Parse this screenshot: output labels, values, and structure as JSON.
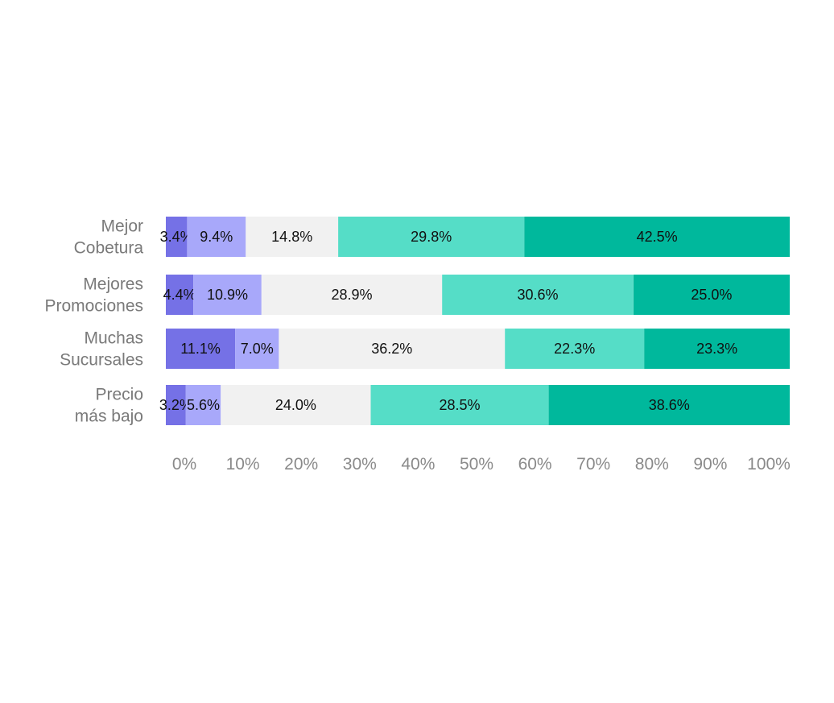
{
  "chart_data": {
    "type": "bar",
    "orientation": "horizontal",
    "stacked": true,
    "title": "",
    "xlabel": "",
    "ylabel": "",
    "xlim": [
      0,
      100
    ],
    "grid": false,
    "legend": "none",
    "categories": [
      [
        "Mejor",
        "Cobetura"
      ],
      [
        "Mejores",
        "Promociones"
      ],
      [
        "Muchas",
        "Sucursales"
      ],
      [
        "Precio",
        "más bajo"
      ]
    ],
    "series": [
      {
        "color": "#7571e6",
        "values": [
          3.4,
          4.4,
          11.1,
          3.2
        ],
        "labels": [
          "3.4%",
          "4.4%",
          "11.1%",
          "3.2%"
        ]
      },
      {
        "color": "#a8a8fa",
        "values": [
          9.4,
          10.9,
          7.0,
          5.6
        ],
        "labels": [
          "9.4%",
          "10.9%",
          "7.0%",
          "5.6%"
        ]
      },
      {
        "color": "#f1f1f1",
        "values": [
          14.8,
          28.9,
          36.2,
          24.0
        ],
        "labels": [
          "14.8%",
          "28.9%",
          "36.2%",
          "24.0%"
        ]
      },
      {
        "color": "#55ddc7",
        "values": [
          29.8,
          30.6,
          22.3,
          28.5
        ],
        "labels": [
          "29.8%",
          "30.6%",
          "22.3%",
          "28.5%"
        ]
      },
      {
        "color": "#00b89c",
        "values": [
          42.5,
          25.0,
          23.3,
          38.6
        ],
        "labels": [
          "42.5%",
          "25.0%",
          "23.3%",
          "38.6%"
        ]
      }
    ],
    "ticks": [
      "0%",
      "10%",
      "20%",
      "30%",
      "40%",
      "50%",
      "60%",
      "70%",
      "80%",
      "90%",
      "100%"
    ]
  }
}
